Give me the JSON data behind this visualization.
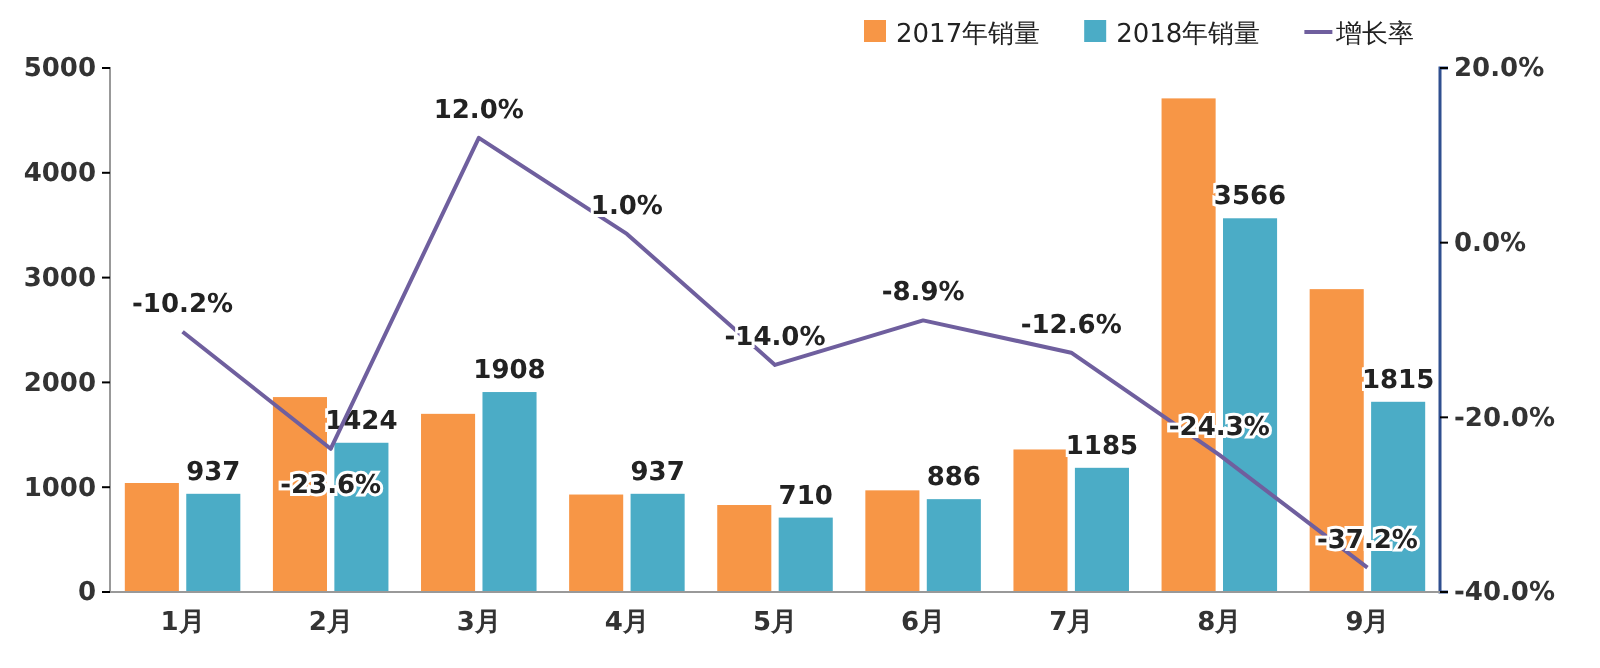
{
  "chart_data": {
    "type": "bar",
    "categories": [
      "1月",
      "2月",
      "3月",
      "4月",
      "5月",
      "6月",
      "7月",
      "8月",
      "9月"
    ],
    "series": [
      {
        "name": "2017年销量",
        "color": "#f79646",
        "values": [
          1040,
          1860,
          1700,
          930,
          830,
          970,
          1360,
          4710,
          2890
        ]
      },
      {
        "name": "2018年销量",
        "color": "#4bacc6",
        "values": [
          937,
          1424,
          1908,
          937,
          710,
          886,
          1185,
          3566,
          1815
        ],
        "value_labels": [
          "937",
          "1424",
          "1908",
          "937",
          "710",
          "886",
          "1185",
          "3566",
          "1815"
        ]
      },
      {
        "name": "增长率",
        "type": "line",
        "axis": "y2",
        "color": "#6f5f9e",
        "values": [
          -10.2,
          -23.6,
          12.0,
          1.0,
          -14.0,
          -8.9,
          -12.6,
          -24.3,
          -37.2
        ],
        "value_labels": [
          "-10.2%",
          "-23.6%",
          "12.0%",
          "1.0%",
          "-14.0%",
          "-8.9%",
          "-12.6%",
          "-24.3%",
          "-37.2%"
        ]
      }
    ],
    "ylim": [
      0,
      5000
    ],
    "yticks": [
      0,
      1000,
      2000,
      3000,
      4000,
      5000
    ],
    "y2lim": [
      -40,
      20
    ],
    "y2ticks": [
      {
        "value": -40,
        "label": "-40.0%"
      },
      {
        "value": -20,
        "label": "-20.0%"
      },
      {
        "value": 0,
        "label": "0.0%"
      },
      {
        "value": 20,
        "label": "20.0%"
      }
    ],
    "grid": false,
    "legend": "top right",
    "marker": "none",
    "line_style": "solid"
  }
}
